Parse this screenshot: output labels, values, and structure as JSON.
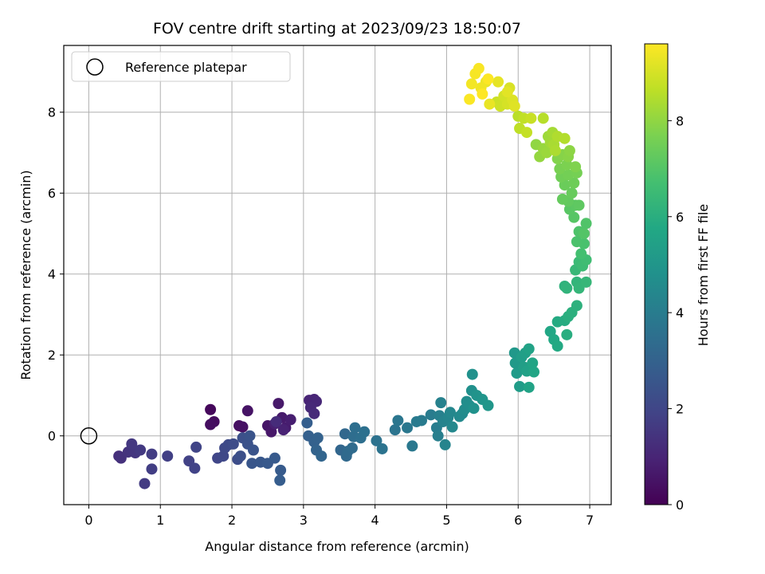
{
  "chart_data": {
    "type": "scatter",
    "title": "FOV centre drift starting at 2023/09/23 18:50:07",
    "xlabel": "Angular distance from reference (arcmin)",
    "ylabel": "Rotation from reference (arcmin)",
    "xlim": [
      -0.35,
      7.3
    ],
    "ylim": [
      -1.7,
      9.65
    ],
    "xticks": [
      "0",
      "1",
      "2",
      "3",
      "4",
      "5",
      "6",
      "7"
    ],
    "yticks": [
      "0",
      "2",
      "4",
      "6",
      "8"
    ],
    "grid": true,
    "legend": {
      "position": "top-left",
      "entries": [
        "Reference platepar"
      ]
    },
    "reference_point": {
      "x": 0,
      "y": 0,
      "label": "Reference platepar"
    },
    "colorbar": {
      "label": "Hours from first FF file",
      "colormap": "viridis",
      "range": [
        0,
        9.6
      ],
      "ticks": [
        "0",
        "2",
        "4",
        "6",
        "8"
      ]
    },
    "series": [
      {
        "marker": "filled-circle",
        "color_by": "hours",
        "points": [
          {
            "x": 1.7,
            "y": 0.65,
            "c": 0.2
          },
          {
            "x": 1.75,
            "y": 0.35,
            "c": 0.3
          },
          {
            "x": 1.7,
            "y": 0.28,
            "c": 0.35
          },
          {
            "x": 2.1,
            "y": 0.25,
            "c": 0.4
          },
          {
            "x": 2.15,
            "y": 0.22,
            "c": 0.45
          },
          {
            "x": 2.22,
            "y": 0.62,
            "c": 0.5
          },
          {
            "x": 2.5,
            "y": 0.25,
            "c": 0.55
          },
          {
            "x": 2.55,
            "y": 0.1,
            "c": 0.6
          },
          {
            "x": 2.65,
            "y": 0.8,
            "c": 0.65
          },
          {
            "x": 2.7,
            "y": 0.45,
            "c": 0.7
          },
          {
            "x": 2.75,
            "y": 0.2,
            "c": 0.75
          },
          {
            "x": 2.82,
            "y": 0.4,
            "c": 0.8
          },
          {
            "x": 2.6,
            "y": 0.3,
            "c": 0.85
          },
          {
            "x": 2.72,
            "y": 0.15,
            "c": 0.9
          },
          {
            "x": 3.08,
            "y": 0.88,
            "c": 0.95
          },
          {
            "x": 3.15,
            "y": 0.9,
            "c": 1.0
          },
          {
            "x": 3.18,
            "y": 0.85,
            "c": 1.05
          },
          {
            "x": 3.1,
            "y": 0.7,
            "c": 1.1
          },
          {
            "x": 3.15,
            "y": 0.55,
            "c": 1.15
          },
          {
            "x": 2.62,
            "y": 0.35,
            "c": 1.2
          },
          {
            "x": 0.42,
            "y": -0.5,
            "c": 1.3
          },
          {
            "x": 0.45,
            "y": -0.55,
            "c": 1.35
          },
          {
            "x": 0.55,
            "y": -0.4,
            "c": 1.4
          },
          {
            "x": 0.6,
            "y": -0.35,
            "c": 1.45
          },
          {
            "x": 0.65,
            "y": -0.42,
            "c": 1.5
          },
          {
            "x": 0.6,
            "y": -0.2,
            "c": 1.55
          },
          {
            "x": 0.72,
            "y": -0.35,
            "c": 1.6
          },
          {
            "x": 0.78,
            "y": -1.18,
            "c": 1.65
          },
          {
            "x": 0.88,
            "y": -0.45,
            "c": 1.7
          },
          {
            "x": 0.88,
            "y": -0.82,
            "c": 1.75
          },
          {
            "x": 1.1,
            "y": -0.5,
            "c": 1.8
          },
          {
            "x": 1.4,
            "y": -0.62,
            "c": 1.85
          },
          {
            "x": 1.48,
            "y": -0.8,
            "c": 1.9
          },
          {
            "x": 1.5,
            "y": -0.28,
            "c": 1.95
          },
          {
            "x": 1.8,
            "y": -0.55,
            "c": 2.0
          },
          {
            "x": 1.88,
            "y": -0.5,
            "c": 2.05
          },
          {
            "x": 1.9,
            "y": -0.3,
            "c": 2.1
          },
          {
            "x": 1.95,
            "y": -0.22,
            "c": 2.15
          },
          {
            "x": 2.02,
            "y": -0.2,
            "c": 2.2
          },
          {
            "x": 2.08,
            "y": -0.58,
            "c": 2.25
          },
          {
            "x": 2.12,
            "y": -0.5,
            "c": 2.3
          },
          {
            "x": 2.15,
            "y": -0.05,
            "c": 2.35
          },
          {
            "x": 2.22,
            "y": -0.2,
            "c": 2.4
          },
          {
            "x": 2.25,
            "y": 0.0,
            "c": 2.45
          },
          {
            "x": 2.3,
            "y": -0.35,
            "c": 2.5
          },
          {
            "x": 2.28,
            "y": -0.68,
            "c": 2.55
          },
          {
            "x": 2.4,
            "y": -0.65,
            "c": 2.6
          },
          {
            "x": 2.5,
            "y": -0.68,
            "c": 2.65
          },
          {
            "x": 2.6,
            "y": -0.55,
            "c": 2.7
          },
          {
            "x": 2.68,
            "y": -0.85,
            "c": 2.75
          },
          {
            "x": 2.67,
            "y": -1.1,
            "c": 2.8
          },
          {
            "x": 3.05,
            "y": 0.32,
            "c": 2.85
          },
          {
            "x": 3.07,
            "y": 0.0,
            "c": 2.9
          },
          {
            "x": 3.15,
            "y": -0.15,
            "c": 2.95
          },
          {
            "x": 3.2,
            "y": -0.05,
            "c": 3.0
          },
          {
            "x": 3.18,
            "y": -0.35,
            "c": 3.05
          },
          {
            "x": 3.25,
            "y": -0.5,
            "c": 3.1
          },
          {
            "x": 3.52,
            "y": -0.35,
            "c": 3.15
          },
          {
            "x": 3.58,
            "y": 0.05,
            "c": 3.2
          },
          {
            "x": 3.6,
            "y": -0.5,
            "c": 3.25
          },
          {
            "x": 3.62,
            "y": -0.38,
            "c": 3.3
          },
          {
            "x": 3.68,
            "y": -0.3,
            "c": 3.35
          },
          {
            "x": 3.7,
            "y": -0.02,
            "c": 3.4
          },
          {
            "x": 3.72,
            "y": 0.2,
            "c": 3.45
          },
          {
            "x": 3.8,
            "y": -0.05,
            "c": 3.5
          },
          {
            "x": 3.85,
            "y": 0.1,
            "c": 3.55
          },
          {
            "x": 4.02,
            "y": -0.12,
            "c": 3.6
          },
          {
            "x": 4.1,
            "y": -0.32,
            "c": 3.65
          },
          {
            "x": 4.28,
            "y": 0.15,
            "c": 3.7
          },
          {
            "x": 4.32,
            "y": 0.38,
            "c": 3.75
          },
          {
            "x": 4.45,
            "y": 0.2,
            "c": 3.8
          },
          {
            "x": 4.52,
            "y": -0.25,
            "c": 3.85
          },
          {
            "x": 4.58,
            "y": 0.35,
            "c": 3.9
          },
          {
            "x": 4.65,
            "y": 0.38,
            "c": 3.95
          },
          {
            "x": 4.78,
            "y": 0.52,
            "c": 4.0
          },
          {
            "x": 4.86,
            "y": 0.2,
            "c": 4.05
          },
          {
            "x": 4.88,
            "y": 0.0,
            "c": 4.1
          },
          {
            "x": 4.9,
            "y": 0.5,
            "c": 4.15
          },
          {
            "x": 4.92,
            "y": 0.82,
            "c": 4.2
          },
          {
            "x": 4.95,
            "y": 0.35,
            "c": 4.25
          },
          {
            "x": 4.98,
            "y": -0.22,
            "c": 4.3
          },
          {
            "x": 5.02,
            "y": 0.45,
            "c": 4.35
          },
          {
            "x": 5.05,
            "y": 0.58,
            "c": 4.4
          },
          {
            "x": 5.08,
            "y": 0.22,
            "c": 4.45
          },
          {
            "x": 5.18,
            "y": 0.48,
            "c": 4.5
          },
          {
            "x": 5.22,
            "y": 0.55,
            "c": 4.55
          },
          {
            "x": 5.25,
            "y": 0.65,
            "c": 4.6
          },
          {
            "x": 5.28,
            "y": 0.85,
            "c": 4.65
          },
          {
            "x": 5.32,
            "y": 0.75,
            "c": 4.7
          },
          {
            "x": 5.35,
            "y": 1.12,
            "c": 4.75
          },
          {
            "x": 5.36,
            "y": 1.52,
            "c": 4.8
          },
          {
            "x": 5.38,
            "y": 0.68,
            "c": 4.85
          },
          {
            "x": 5.42,
            "y": 1.0,
            "c": 4.9
          },
          {
            "x": 5.5,
            "y": 0.9,
            "c": 4.95
          },
          {
            "x": 5.58,
            "y": 0.75,
            "c": 5.0
          },
          {
            "x": 5.95,
            "y": 2.05,
            "c": 5.1
          },
          {
            "x": 5.96,
            "y": 1.8,
            "c": 5.15
          },
          {
            "x": 5.98,
            "y": 1.55,
            "c": 5.2
          },
          {
            "x": 6.02,
            "y": 1.22,
            "c": 5.25
          },
          {
            "x": 6.05,
            "y": 1.95,
            "c": 5.3
          },
          {
            "x": 6.08,
            "y": 1.7,
            "c": 5.35
          },
          {
            "x": 6.1,
            "y": 2.05,
            "c": 5.4
          },
          {
            "x": 6.12,
            "y": 1.6,
            "c": 5.45
          },
          {
            "x": 6.15,
            "y": 2.15,
            "c": 5.5
          },
          {
            "x": 6.15,
            "y": 1.2,
            "c": 5.55
          },
          {
            "x": 6.2,
            "y": 1.8,
            "c": 5.6
          },
          {
            "x": 6.22,
            "y": 1.58,
            "c": 5.65
          },
          {
            "x": 6.45,
            "y": 2.58,
            "c": 5.7
          },
          {
            "x": 6.5,
            "y": 2.38,
            "c": 5.75
          },
          {
            "x": 6.55,
            "y": 2.22,
            "c": 5.8
          },
          {
            "x": 6.55,
            "y": 2.82,
            "c": 5.85
          },
          {
            "x": 6.65,
            "y": 2.85,
            "c": 5.9
          },
          {
            "x": 6.68,
            "y": 2.5,
            "c": 5.95
          },
          {
            "x": 6.7,
            "y": 2.95,
            "c": 6.0
          },
          {
            "x": 6.75,
            "y": 3.05,
            "c": 6.05
          },
          {
            "x": 6.82,
            "y": 3.22,
            "c": 6.1
          },
          {
            "x": 6.65,
            "y": 3.7,
            "c": 6.15
          },
          {
            "x": 6.68,
            "y": 3.65,
            "c": 6.2
          },
          {
            "x": 6.82,
            "y": 3.8,
            "c": 6.25
          },
          {
            "x": 6.85,
            "y": 3.65,
            "c": 6.3
          },
          {
            "x": 6.95,
            "y": 3.8,
            "c": 6.35
          },
          {
            "x": 6.8,
            "y": 4.1,
            "c": 6.4
          },
          {
            "x": 6.85,
            "y": 4.3,
            "c": 6.5
          },
          {
            "x": 6.9,
            "y": 4.2,
            "c": 6.55
          },
          {
            "x": 6.95,
            "y": 4.35,
            "c": 6.6
          },
          {
            "x": 6.88,
            "y": 4.5,
            "c": 6.7
          },
          {
            "x": 6.92,
            "y": 4.75,
            "c": 6.8
          },
          {
            "x": 6.82,
            "y": 4.8,
            "c": 6.85
          },
          {
            "x": 6.85,
            "y": 5.05,
            "c": 6.9
          },
          {
            "x": 6.95,
            "y": 5.25,
            "c": 6.95
          },
          {
            "x": 6.92,
            "y": 5.0,
            "c": 7.0
          },
          {
            "x": 6.78,
            "y": 5.4,
            "c": 7.05
          },
          {
            "x": 6.72,
            "y": 5.6,
            "c": 7.1
          },
          {
            "x": 6.8,
            "y": 5.7,
            "c": 7.15
          },
          {
            "x": 6.85,
            "y": 5.7,
            "c": 7.2
          },
          {
            "x": 6.7,
            "y": 5.8,
            "c": 7.25
          },
          {
            "x": 6.62,
            "y": 5.85,
            "c": 7.3
          },
          {
            "x": 6.75,
            "y": 6.0,
            "c": 7.35
          },
          {
            "x": 6.65,
            "y": 6.2,
            "c": 7.4
          },
          {
            "x": 6.78,
            "y": 6.25,
            "c": 7.45
          },
          {
            "x": 6.6,
            "y": 6.4,
            "c": 7.5
          },
          {
            "x": 6.7,
            "y": 6.45,
            "c": 7.55
          },
          {
            "x": 6.82,
            "y": 6.5,
            "c": 7.6
          },
          {
            "x": 6.58,
            "y": 6.6,
            "c": 7.65
          },
          {
            "x": 6.68,
            "y": 6.7,
            "c": 7.7
          },
          {
            "x": 6.8,
            "y": 6.65,
            "c": 7.75
          },
          {
            "x": 6.55,
            "y": 6.85,
            "c": 7.8
          },
          {
            "x": 6.62,
            "y": 6.95,
            "c": 7.85
          },
          {
            "x": 6.7,
            "y": 6.9,
            "c": 7.9
          },
          {
            "x": 6.72,
            "y": 7.05,
            "c": 7.95
          },
          {
            "x": 6.25,
            "y": 7.2,
            "c": 8.0
          },
          {
            "x": 6.3,
            "y": 6.9,
            "c": 8.05
          },
          {
            "x": 6.35,
            "y": 7.1,
            "c": 8.1
          },
          {
            "x": 6.4,
            "y": 7.0,
            "c": 8.15
          },
          {
            "x": 6.42,
            "y": 7.4,
            "c": 8.2
          },
          {
            "x": 6.45,
            "y": 7.25,
            "c": 8.25
          },
          {
            "x": 6.48,
            "y": 7.5,
            "c": 8.3
          },
          {
            "x": 6.5,
            "y": 7.2,
            "c": 8.35
          },
          {
            "x": 6.52,
            "y": 7.05,
            "c": 8.4
          },
          {
            "x": 6.55,
            "y": 7.4,
            "c": 8.45
          },
          {
            "x": 6.65,
            "y": 7.35,
            "c": 8.5
          },
          {
            "x": 6.35,
            "y": 7.85,
            "c": 8.55
          },
          {
            "x": 6.0,
            "y": 7.9,
            "c": 8.6
          },
          {
            "x": 6.02,
            "y": 7.6,
            "c": 8.65
          },
          {
            "x": 6.08,
            "y": 7.85,
            "c": 8.7
          },
          {
            "x": 6.12,
            "y": 7.5,
            "c": 8.75
          },
          {
            "x": 6.18,
            "y": 7.85,
            "c": 8.8
          },
          {
            "x": 5.7,
            "y": 8.25,
            "c": 8.85
          },
          {
            "x": 5.75,
            "y": 8.15,
            "c": 8.9
          },
          {
            "x": 5.8,
            "y": 8.4,
            "c": 8.95
          },
          {
            "x": 5.85,
            "y": 8.2,
            "c": 9.0
          },
          {
            "x": 5.88,
            "y": 8.6,
            "c": 9.05
          },
          {
            "x": 5.92,
            "y": 8.3,
            "c": 9.1
          },
          {
            "x": 5.95,
            "y": 8.15,
            "c": 9.15
          },
          {
            "x": 5.85,
            "y": 8.5,
            "c": 9.2
          },
          {
            "x": 5.72,
            "y": 8.75,
            "c": 9.25
          },
          {
            "x": 5.6,
            "y": 8.2,
            "c": 9.3
          },
          {
            "x": 5.55,
            "y": 8.75,
            "c": 9.35
          },
          {
            "x": 5.48,
            "y": 8.6,
            "c": 9.4
          },
          {
            "x": 5.35,
            "y": 8.7,
            "c": 9.45
          },
          {
            "x": 5.4,
            "y": 8.95,
            "c": 9.5
          },
          {
            "x": 5.45,
            "y": 9.08,
            "c": 9.52
          },
          {
            "x": 5.32,
            "y": 8.32,
            "c": 9.55
          },
          {
            "x": 5.58,
            "y": 8.82,
            "c": 9.58
          },
          {
            "x": 5.5,
            "y": 8.45,
            "c": 9.6
          }
        ]
      }
    ]
  }
}
